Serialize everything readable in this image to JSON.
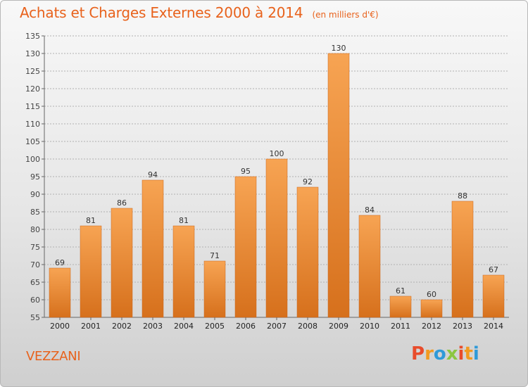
{
  "header": {
    "title": "Achats et Charges Externes 2000 à 2014",
    "unit": "(en milliers d'€)"
  },
  "footer": {
    "town": "VEZZANI",
    "logo_letters": [
      "P",
      "r",
      "o",
      "x",
      "i",
      "t",
      "i"
    ]
  },
  "colors": {
    "title": "#e8621c",
    "bar_top": "#f7a453",
    "bar_bottom": "#d6701c",
    "grid": "#b0b0b0",
    "logo": [
      "#e84c2b",
      "#f29a1f",
      "#2f9ad8",
      "#8cc63f",
      "#e84c2b",
      "#f29a1f",
      "#2f9ad8"
    ]
  },
  "chart_data": {
    "type": "bar",
    "title": "Achats et Charges Externes 2000 à 2014",
    "subtitle": "(en milliers d'€)",
    "categories": [
      "2000",
      "2001",
      "2002",
      "2003",
      "2004",
      "2005",
      "2006",
      "2007",
      "2008",
      "2009",
      "2010",
      "2011",
      "2012",
      "2013",
      "2014"
    ],
    "values": [
      69,
      81,
      86,
      94,
      81,
      71,
      95,
      100,
      92,
      130,
      84,
      61,
      60,
      88,
      67
    ],
    "xlabel": "",
    "ylabel": "",
    "ylim": [
      55,
      135
    ],
    "yticks": [
      55,
      60,
      65,
      70,
      75,
      80,
      85,
      90,
      95,
      100,
      105,
      110,
      115,
      120,
      125,
      130,
      135
    ],
    "grid": true,
    "legend": "none"
  }
}
